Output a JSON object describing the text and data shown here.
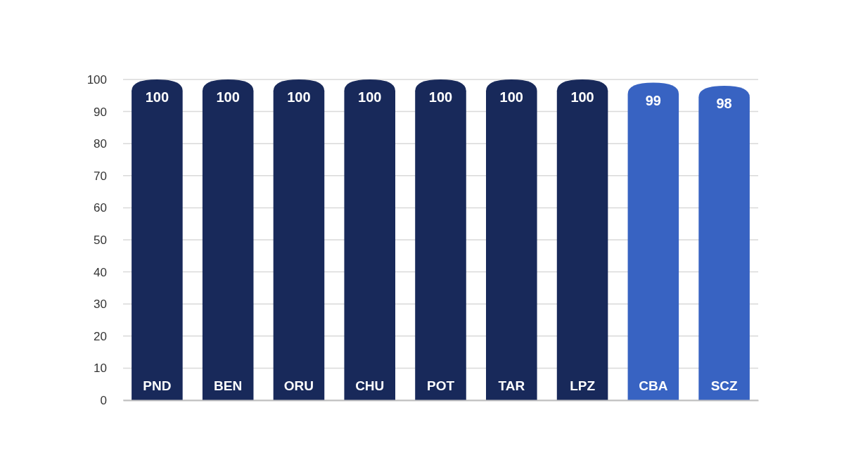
{
  "chart_data": {
    "type": "bar",
    "categories": [
      "PND",
      "BEN",
      "ORU",
      "CHU",
      "POT",
      "TAR",
      "LPZ",
      "CBA",
      "SCZ"
    ],
    "values": [
      100,
      100,
      100,
      100,
      100,
      100,
      100,
      99,
      98
    ],
    "colors": [
      "#18295a",
      "#18295a",
      "#18295a",
      "#18295a",
      "#18295a",
      "#18295a",
      "#18295a",
      "#3863c2",
      "#3863c2"
    ],
    "ylim": [
      0,
      100
    ],
    "yticks": [
      0,
      10,
      20,
      30,
      40,
      50,
      60,
      70,
      80,
      90,
      100
    ],
    "grid": "y",
    "data_labels": true
  }
}
